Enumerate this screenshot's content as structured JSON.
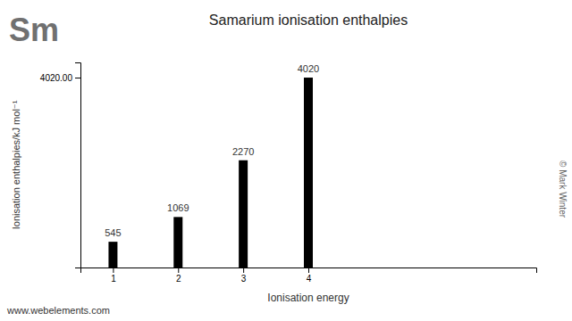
{
  "chart_data": {
    "type": "bar",
    "title": "Samarium ionisation enthalpies",
    "x_label": "Ionisation energy",
    "y_label": "Ionisation enthalpies/kJ mol⁻¹",
    "annotations": [
      "Sm",
      "www.webelements.com",
      "© Mark Winter"
    ],
    "x": [
      1,
      2,
      3,
      4
    ],
    "values": [
      545,
      1069,
      2270,
      4020
    ],
    "color": "#000000",
    "xlim": [
      0.5,
      7.5
    ],
    "xticks": [
      1,
      2,
      3,
      4
    ],
    "ylim": [
      0,
      4341.6
    ],
    "yticks": [
      {
        "value": 4020,
        "label": "4020.00"
      }
    ],
    "grid": false,
    "data_labels": true
  }
}
